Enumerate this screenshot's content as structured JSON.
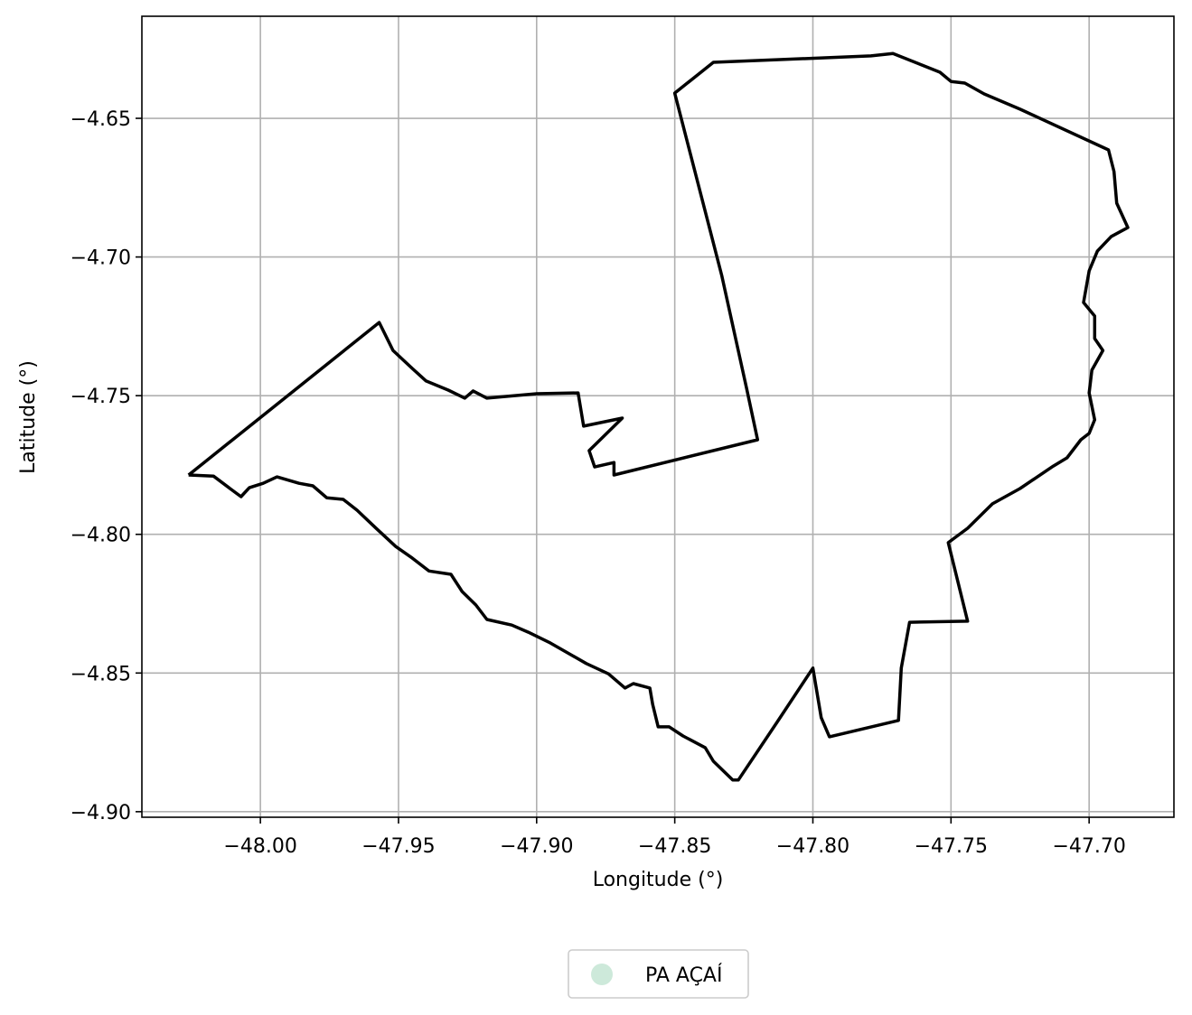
{
  "chart_data": {
    "type": "line",
    "xlabel": "Longitude (°)",
    "ylabel": "Latitude (°)",
    "xlim": [
      -48.0429,
      -47.6693
    ],
    "ylim": [
      -4.902,
      -4.6132
    ],
    "xticks": [
      {
        "value": -48.0,
        "label": "−48.00"
      },
      {
        "value": -47.95,
        "label": "−47.95"
      },
      {
        "value": -47.9,
        "label": "−47.90"
      },
      {
        "value": -47.85,
        "label": "−47.85"
      },
      {
        "value": -47.8,
        "label": "−47.80"
      },
      {
        "value": -47.75,
        "label": "−47.75"
      },
      {
        "value": -47.7,
        "label": "−47.70"
      }
    ],
    "yticks": [
      {
        "value": -4.65,
        "label": "−4.65"
      },
      {
        "value": -4.7,
        "label": "−4.70"
      },
      {
        "value": -4.75,
        "label": "−4.75"
      },
      {
        "value": -4.8,
        "label": "−4.80"
      },
      {
        "value": -4.85,
        "label": "−4.85"
      },
      {
        "value": -4.9,
        "label": "−4.90"
      }
    ],
    "grid": true,
    "legend": "bottom",
    "series": [
      {
        "name": "PA AÇAÍ",
        "color": "#000000",
        "marker_color": "#cde9da",
        "x": [
          -48.026,
          -47.957,
          -47.952,
          -47.945,
          -47.94,
          -47.932,
          -47.926,
          -47.923,
          -47.918,
          -47.9,
          -47.885,
          -47.883,
          -47.869,
          -47.881,
          -47.879,
          -47.872,
          -47.872,
          -47.82,
          -47.824,
          -47.833,
          -47.85,
          -47.836,
          -47.779,
          -47.771,
          -47.754,
          -47.75,
          -47.745,
          -47.738,
          -47.725,
          -47.693,
          -47.691,
          -47.69,
          -47.686,
          -47.692,
          -47.697,
          -47.7,
          -47.702,
          -47.698,
          -47.698,
          -47.695,
          -47.699,
          -47.7,
          -47.698,
          -47.7,
          -47.703,
          -47.708,
          -47.713,
          -47.725,
          -47.735,
          -47.744,
          -47.751,
          -47.744,
          -47.765,
          -47.768,
          -47.769,
          -47.794,
          -47.797,
          -47.8,
          -47.813,
          -47.827,
          -47.829,
          -47.836,
          -47.839,
          -47.847,
          -47.852,
          -47.856,
          -47.858,
          -47.859,
          -47.865,
          -47.868,
          -47.874,
          -47.882,
          -47.895,
          -47.903,
          -47.909,
          -47.918,
          -47.922,
          -47.927,
          -47.931,
          -47.939,
          -47.945,
          -47.951,
          -47.958,
          -47.965,
          -47.97,
          -47.976,
          -47.981,
          -47.986,
          -47.994,
          -47.999,
          -48.004,
          -48.007,
          -48.011,
          -48.017,
          -48.026
        ],
        "values": [
          -4.7786,
          -4.7236,
          -4.7337,
          -4.7402,
          -4.7447,
          -4.748,
          -4.7509,
          -4.7483,
          -4.7509,
          -4.7493,
          -4.749,
          -4.761,
          -4.7581,
          -4.7698,
          -4.7757,
          -4.7741,
          -4.7786,
          -4.7659,
          -4.7473,
          -4.7066,
          -4.6409,
          -4.6298,
          -4.6275,
          -4.6266,
          -4.6334,
          -4.6367,
          -4.6373,
          -4.6412,
          -4.6467,
          -4.6614,
          -4.6692,
          -4.6806,
          -4.6894,
          -4.6926,
          -4.6979,
          -4.705,
          -4.7164,
          -4.7213,
          -4.7294,
          -4.7337,
          -4.7408,
          -4.749,
          -4.7587,
          -4.7636,
          -4.7659,
          -4.7724,
          -4.7754,
          -4.7835,
          -4.789,
          -4.7978,
          -4.803,
          -4.8313,
          -4.8317,
          -4.8482,
          -4.8671,
          -4.873,
          -4.8661,
          -4.8482,
          -4.8678,
          -4.8886,
          -4.8886,
          -4.8818,
          -4.8769,
          -4.8727,
          -4.8694,
          -4.8694,
          -4.8613,
          -4.8554,
          -4.8538,
          -4.8554,
          -4.8503,
          -4.8466,
          -4.8392,
          -4.8353,
          -4.8327,
          -4.8307,
          -4.8255,
          -4.8206,
          -4.8144,
          -4.8132,
          -4.8086,
          -4.8044,
          -4.7979,
          -4.7913,
          -4.7874,
          -4.7868,
          -4.7825,
          -4.7816,
          -4.7793,
          -4.7816,
          -4.7832,
          -4.7864,
          -4.7835,
          -4.779,
          -4.7786
        ]
      }
    ]
  }
}
